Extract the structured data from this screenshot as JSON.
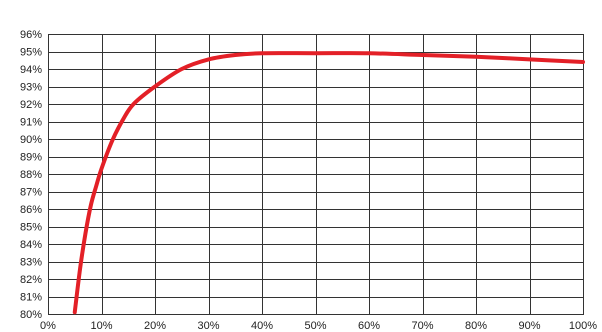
{
  "chart_data": {
    "type": "line",
    "title": "",
    "xlabel": "",
    "ylabel": "",
    "xlim": [
      0,
      100
    ],
    "ylim": [
      80,
      96
    ],
    "x_ticks": [
      0,
      10,
      20,
      30,
      40,
      50,
      60,
      70,
      80,
      90,
      100
    ],
    "y_ticks": [
      80,
      81,
      82,
      83,
      84,
      85,
      86,
      87,
      88,
      89,
      90,
      91,
      92,
      93,
      94,
      95,
      96
    ],
    "x_tick_labels": [
      "0%",
      "10%",
      "20%",
      "30%",
      "40%",
      "50%",
      "60%",
      "70%",
      "80%",
      "90%",
      "100%"
    ],
    "y_tick_labels": [
      "80%",
      "81%",
      "82%",
      "83%",
      "84%",
      "85%",
      "86%",
      "87%",
      "88%",
      "89%",
      "90%",
      "91%",
      "92%",
      "93%",
      "94%",
      "95%",
      "96%"
    ],
    "grid": true,
    "legend": "none",
    "series": [
      {
        "color": "#e32027",
        "x": [
          5,
          6,
          7,
          8,
          9,
          10,
          12,
          14,
          16,
          20,
          25,
          30,
          35,
          40,
          50,
          60,
          70,
          80,
          90,
          100
        ],
        "y": [
          80.1,
          82.6,
          84.6,
          86.2,
          87.3,
          88.3,
          89.9,
          91.1,
          92.0,
          93.0,
          94.0,
          94.55,
          94.8,
          94.9,
          94.9,
          94.9,
          94.8,
          94.7,
          94.55,
          94.4
        ]
      }
    ]
  }
}
